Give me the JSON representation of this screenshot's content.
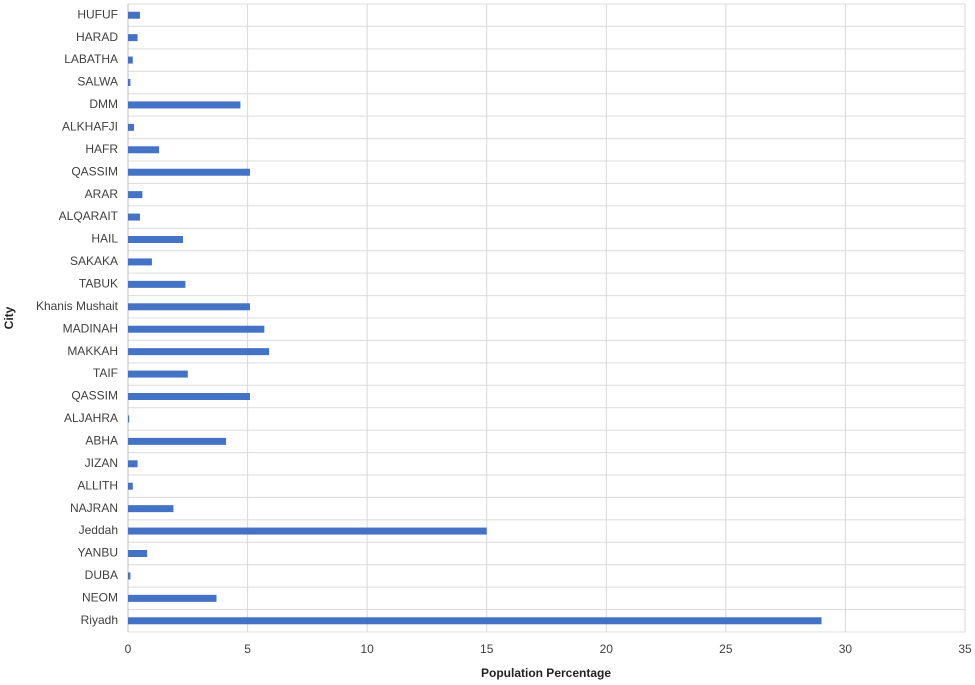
{
  "chart_data": {
    "type": "barh",
    "x_label": "Population Percentage",
    "y_label": "City",
    "categories": [
      "Riyadh",
      "NEOM",
      "DUBA",
      "YANBU",
      "Jeddah",
      "NAJRAN",
      "ALLITH",
      "JIZAN",
      "ABHA",
      "ALJAHRA",
      "QASSIM",
      "TAIF",
      "MAKKAH",
      "MADINAH",
      "Khanis Mushait",
      "TABUK",
      "SAKAKA",
      "HAIL",
      "ALQARAIT",
      "ARAR",
      "QASSIM",
      "HAFR",
      "ALKHAFJI",
      "DMM",
      "SALWA",
      "LABATHA",
      "HARAD",
      "HUFUF"
    ],
    "values": [
      29,
      3.7,
      0.1,
      0.8,
      15,
      1.9,
      0.2,
      0.4,
      4.1,
      0.05,
      5.1,
      2.5,
      5.9,
      5.7,
      5.1,
      2.4,
      1,
      2.3,
      0.5,
      0.6,
      5.1,
      1.3,
      0.25,
      4.7,
      0.1,
      0.2,
      0.4,
      0.5
    ],
    "color": "#4472c4",
    "xlim": [
      0,
      35
    ],
    "xticks": [
      0,
      5,
      10,
      15,
      20,
      25,
      30,
      35
    ],
    "grid": true
  }
}
